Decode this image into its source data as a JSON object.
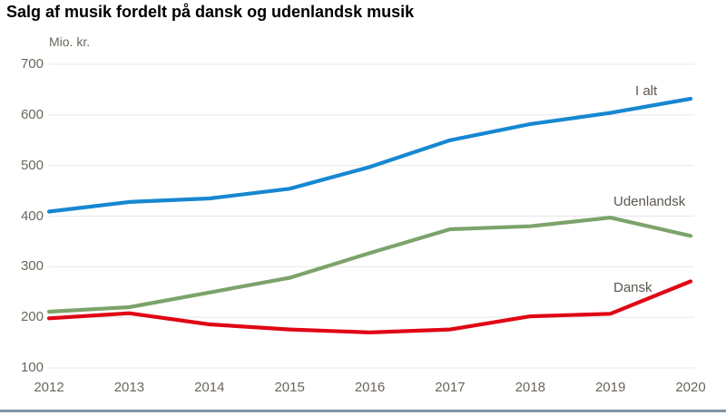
{
  "page": {
    "title": "Salg af musik fordelt på dansk og udenlandsk musik",
    "unit_label": "Mio. kr."
  },
  "chart_data": {
    "type": "line",
    "title": "Salg af musik fordelt på dansk og udenlandsk musik",
    "xlabel": "",
    "ylabel": "Mio. kr.",
    "x": [
      2012,
      2013,
      2014,
      2015,
      2016,
      2017,
      2018,
      2019,
      2020
    ],
    "ylim": [
      100,
      700
    ],
    "ytick_step": 100,
    "grid": "horizontal-only",
    "legend_position": "inline-end-labels",
    "series": [
      {
        "name": "I alt",
        "color": "#1787d1",
        "values": [
          409,
          428,
          435,
          454,
          497,
          550,
          582,
          604,
          632
        ]
      },
      {
        "name": "Udenlandsk",
        "color": "#7ca36a",
        "values": [
          211,
          220,
          249,
          278,
          327,
          374,
          380,
          397,
          361
        ]
      },
      {
        "name": "Dansk",
        "color": "#e00614",
        "values": [
          198,
          208,
          186,
          176,
          170,
          176,
          202,
          207,
          271
        ]
      }
    ]
  },
  "colors": {
    "background": "#ffffff",
    "gridline": "#e7e7e7",
    "axis_text": "#6b665c",
    "series_label_text": "#5c574d",
    "title_text": "#000000",
    "bottom_bar": "#7e96a3"
  }
}
